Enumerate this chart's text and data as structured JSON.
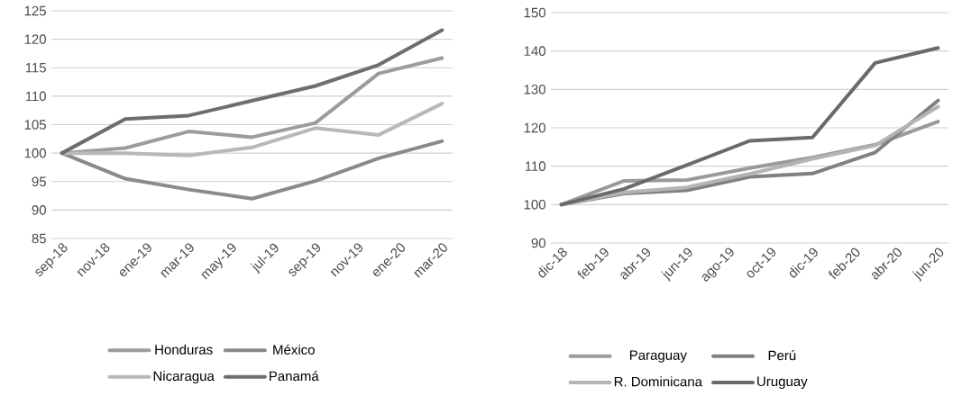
{
  "chart_data": [
    {
      "type": "line",
      "x": [
        "2018-09",
        "2018-12",
        "2019-03",
        "2019-06",
        "2019-09",
        "2019-12",
        "2020-03"
      ],
      "series": [
        {
          "name": "Honduras",
          "color": "#9c9c9c",
          "values": [
            100,
            100.9,
            103.8,
            102.8,
            105.3,
            114,
            116.7
          ]
        },
        {
          "name": "México",
          "color": "#8a8a8a",
          "values": [
            100,
            95.5,
            93.6,
            92,
            95.1,
            99.1,
            102.1
          ]
        },
        {
          "name": "Nicaragua",
          "color": "#b8b8b8",
          "values": [
            100,
            100,
            99.6,
            101,
            104.4,
            103.2,
            108.7
          ]
        },
        {
          "name": "Panamá",
          "color": "#6e6e6e",
          "values": [
            100,
            106,
            106.6,
            109.2,
            111.8,
            115.5,
            121.6
          ]
        }
      ],
      "xlim": [
        "2018-08-16",
        "2020-03-16"
      ],
      "xticks": [
        {
          "value": "2018-09",
          "label": "sep-18"
        },
        {
          "value": "2018-11",
          "label": "nov-18"
        },
        {
          "value": "2019-01",
          "label": "ene-19"
        },
        {
          "value": "2019-03",
          "label": "mar-19"
        },
        {
          "value": "2019-05",
          "label": "may-19"
        },
        {
          "value": "2019-07",
          "label": "jul-19"
        },
        {
          "value": "2019-09",
          "label": "sep-19"
        },
        {
          "value": "2019-11",
          "label": "nov-19"
        },
        {
          "value": "2020-01",
          "label": "ene-20"
        },
        {
          "value": "2020-03",
          "label": "mar-20"
        }
      ],
      "ylim": [
        85,
        125
      ],
      "yticks": [
        85,
        90,
        95,
        100,
        105,
        110,
        115,
        120,
        125
      ],
      "grid": "y",
      "legend": "bottom"
    },
    {
      "type": "line",
      "x": [
        "2018-12",
        "2019-03",
        "2019-06",
        "2019-09",
        "2019-12",
        "2020-03",
        "2020-06"
      ],
      "series": [
        {
          "name": "Paraguay",
          "color": "#9a9a9a",
          "values": [
            100,
            106.2,
            106.4,
            109.5,
            112.3,
            115.6,
            121.6
          ]
        },
        {
          "name": "Perú",
          "color": "#808080",
          "values": [
            100,
            102.9,
            103.7,
            107.2,
            108.1,
            113.6,
            127.1
          ]
        },
        {
          "name": "R. Dominicana",
          "color": "#b4b4b4",
          "values": [
            100,
            103.2,
            104.5,
            108,
            111.9,
            115.4,
            125.5
          ]
        },
        {
          "name": "Uruguay",
          "color": "#6a6a6a",
          "values": [
            100,
            104.1,
            110.3,
            116.6,
            117.5,
            136.9,
            140.8
          ]
        }
      ],
      "xlim": [
        "2018-11-16",
        "2020-06-16"
      ],
      "xticks": [
        {
          "value": "2018-12",
          "label": "dic-18"
        },
        {
          "value": "2019-02",
          "label": "feb-19"
        },
        {
          "value": "2019-04",
          "label": "abr-19"
        },
        {
          "value": "2019-06",
          "label": "jun-19"
        },
        {
          "value": "2019-08",
          "label": "ago-19"
        },
        {
          "value": "2019-10",
          "label": "oct-19"
        },
        {
          "value": "2019-12",
          "label": "dic-19"
        },
        {
          "value": "2020-02",
          "label": "feb-20"
        },
        {
          "value": "2020-04",
          "label": "abr-20"
        },
        {
          "value": "2020-06",
          "label": "jun-20"
        }
      ],
      "ylim": [
        90,
        150
      ],
      "yticks": [
        90,
        100,
        110,
        120,
        130,
        140,
        150
      ],
      "grid": "y",
      "legend": "bottom"
    }
  ]
}
